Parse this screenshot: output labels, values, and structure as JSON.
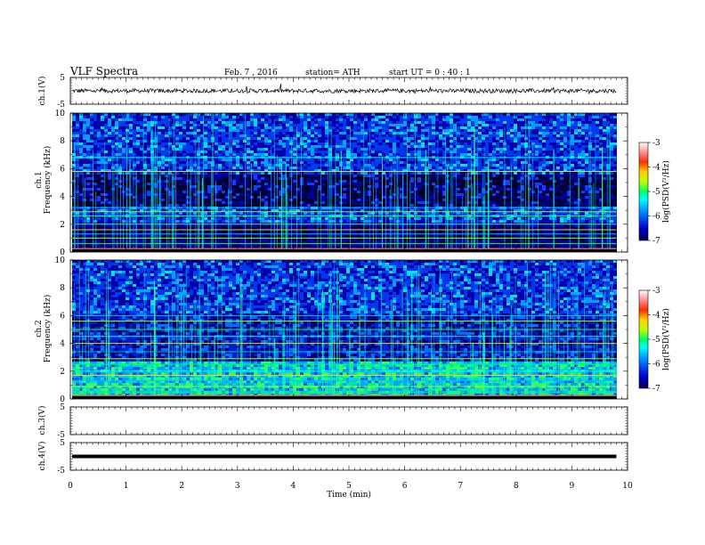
{
  "header": {
    "title": "VLF  Spectra",
    "date": "Feb. 7  , 2016",
    "station": "station= ATH",
    "start": "start  UT =   0 : 40 : 1"
  },
  "colors": {
    "background": "#ffffff",
    "colormap": [
      "#00004a",
      "#0000b4",
      "#0050ff",
      "#00c8ff",
      "#00ff80",
      "#a0ff00",
      "#ffff00",
      "#ffa000",
      "#ff3000",
      "#ff9090",
      "#ffffff"
    ]
  },
  "colorbar": {
    "label": "log(PSD(V²/Hz)",
    "ticks": [
      "-3",
      "-4",
      "-5",
      "-6",
      "-7"
    ]
  },
  "chart_data": [
    {
      "type": "line",
      "name": "ch1-waveform",
      "ylabel": "ch.1(V)",
      "yticks": [
        "5",
        "-5"
      ],
      "ylim": [
        -5,
        5
      ],
      "baseline": 0,
      "noise_amplitude": 0.8
    },
    {
      "type": "heatmap",
      "name": "ch1-spectrogram",
      "ylabel": [
        "ch.1",
        "Frequency  (kHz)"
      ],
      "yticks": [
        "10",
        "8",
        "6",
        "4",
        "2",
        "0"
      ],
      "ylim": [
        0,
        10
      ],
      "xlim": [
        0,
        10
      ],
      "data_end_min": 9.8,
      "horizontal_lines_khz": [
        0.2,
        0.6,
        1.0,
        1.3,
        1.6,
        2.0,
        2.6,
        2.9,
        3.2,
        5.8,
        6.8
      ]
    },
    {
      "type": "heatmap",
      "name": "ch2-spectrogram",
      "ylabel": [
        "ch.2",
        "Frequency  (kHz)"
      ],
      "yticks": [
        "10",
        "8",
        "6",
        "4",
        "2",
        "0"
      ],
      "ylim": [
        0,
        10
      ],
      "xlim": [
        0,
        10
      ],
      "data_end_min": 9.8,
      "horizontal_lines_khz": [
        0.2,
        0.5,
        0.9,
        1.3,
        1.7,
        2.0,
        2.5,
        2.9,
        3.4,
        4.0,
        4.5,
        5.0,
        5.6,
        6.0
      ]
    },
    {
      "type": "line",
      "name": "ch3-waveform",
      "ylabel": "ch.3(V)",
      "yticks": [
        "5",
        "-5"
      ],
      "ylim": [
        -5,
        5
      ]
    },
    {
      "type": "line",
      "name": "ch4-waveform",
      "ylabel": "ch.4(V)",
      "yticks": [
        "5",
        "-5"
      ],
      "ylim": [
        -5,
        5
      ],
      "baseline": 0
    }
  ],
  "xaxis": {
    "label": "Time  (min)",
    "ticks": [
      "0",
      "1",
      "2",
      "3",
      "4",
      "5",
      "6",
      "7",
      "8",
      "9",
      "10"
    ]
  }
}
